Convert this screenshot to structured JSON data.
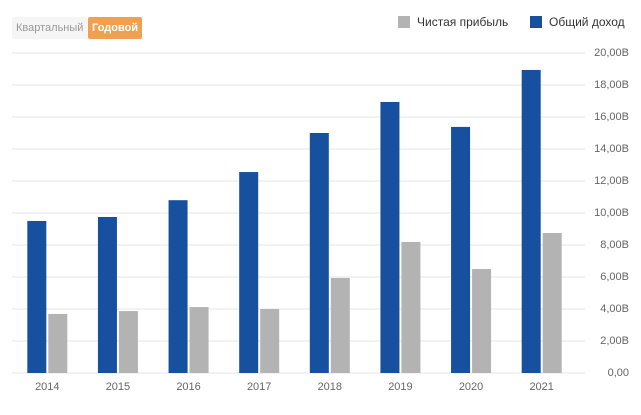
{
  "period_buttons": [
    "Квартальный",
    "Годовой"
  ],
  "active_button": 1,
  "chart_data": {
    "type": "bar",
    "categories": [
      "2014",
      "2015",
      "2016",
      "2017",
      "2018",
      "2019",
      "2020",
      "2021"
    ],
    "series": [
      {
        "name": "Чистая прибыль",
        "color": "#b3b3b3",
        "values": [
          3.69,
          3.87,
          4.12,
          4.0,
          5.94,
          8.19,
          6.5,
          8.75
        ]
      },
      {
        "name": "Общий доход",
        "color": "#16509e",
        "values": [
          9.5,
          9.75,
          10.8,
          12.56,
          15.0,
          16.94,
          15.38,
          18.94
        ]
      }
    ],
    "ylim": [
      0,
      20
    ],
    "yticks": [
      {
        "value": 0,
        "label": "0,00"
      },
      {
        "value": 2,
        "label": "2,00B"
      },
      {
        "value": 4,
        "label": "4,00B"
      },
      {
        "value": 6,
        "label": "6,00B"
      },
      {
        "value": 8,
        "label": "8,00B"
      },
      {
        "value": 10,
        "label": "10,00B"
      },
      {
        "value": 12,
        "label": "12,00B"
      },
      {
        "value": 14,
        "label": "14,00B"
      },
      {
        "value": 16,
        "label": "16,00B"
      },
      {
        "value": 18,
        "label": "18,00B"
      },
      {
        "value": 20,
        "label": "20,00B"
      }
    ],
    "grid": true
  }
}
